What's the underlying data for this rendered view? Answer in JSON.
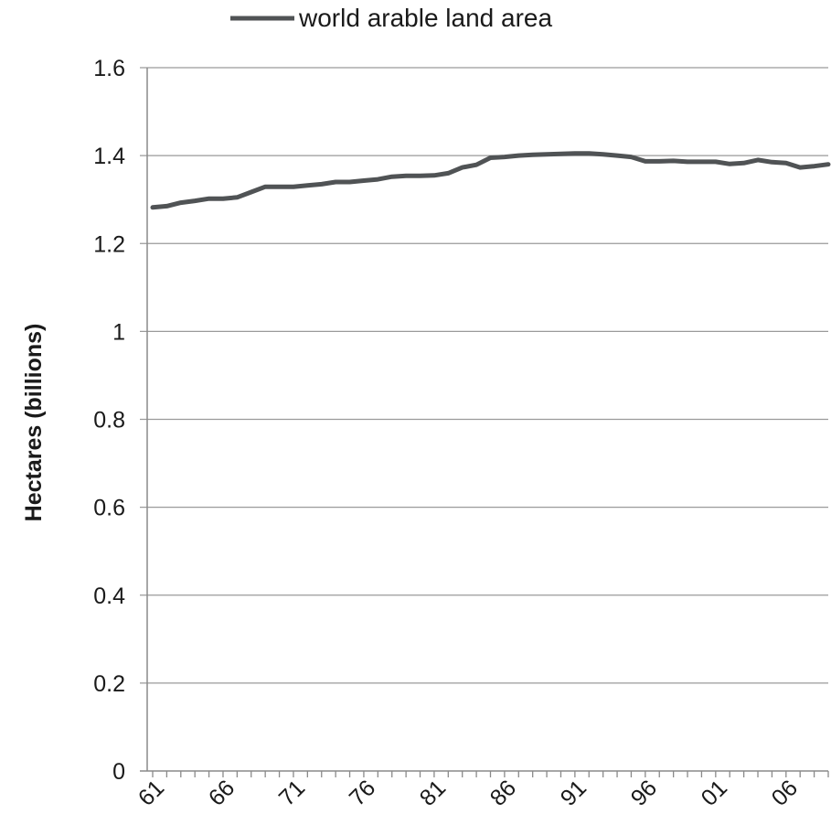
{
  "chart_data": {
    "type": "line",
    "ylabel": "Hectares (billions)",
    "ylim": [
      0,
      1.6
    ],
    "yticks": [
      "0",
      "0.2",
      "0.4",
      "0.6",
      "0.8",
      "1",
      "1.2",
      "1.4",
      "1.6"
    ],
    "grid": true,
    "legend_position": "top",
    "x_tick_labels": [
      "61",
      "66",
      "71",
      "76",
      "81",
      "86",
      "91",
      "96",
      "01",
      "06"
    ],
    "x": [
      "61",
      "62",
      "63",
      "64",
      "65",
      "66",
      "67",
      "68",
      "69",
      "70",
      "71",
      "72",
      "73",
      "74",
      "75",
      "76",
      "77",
      "78",
      "79",
      "80",
      "81",
      "82",
      "83",
      "84",
      "85",
      "86",
      "87",
      "88",
      "89",
      "90",
      "91",
      "92",
      "93",
      "94",
      "95",
      "96",
      "97",
      "98",
      "99",
      "00",
      "01",
      "02",
      "03",
      "04",
      "05",
      "06",
      "07",
      "08",
      "09"
    ],
    "series": [
      {
        "name": "world arable land area",
        "color": "#505355",
        "values": [
          1.282,
          1.285,
          1.293,
          1.297,
          1.302,
          1.302,
          1.305,
          1.317,
          1.329,
          1.329,
          1.329,
          1.332,
          1.335,
          1.34,
          1.34,
          1.343,
          1.346,
          1.352,
          1.354,
          1.354,
          1.355,
          1.36,
          1.373,
          1.379,
          1.395,
          1.397,
          1.4,
          1.402,
          1.403,
          1.404,
          1.405,
          1.405,
          1.403,
          1.4,
          1.397,
          1.387,
          1.387,
          1.388,
          1.386,
          1.386,
          1.386,
          1.381,
          1.383,
          1.39,
          1.385,
          1.383,
          1.373,
          1.376,
          1.38
        ]
      }
    ]
  }
}
